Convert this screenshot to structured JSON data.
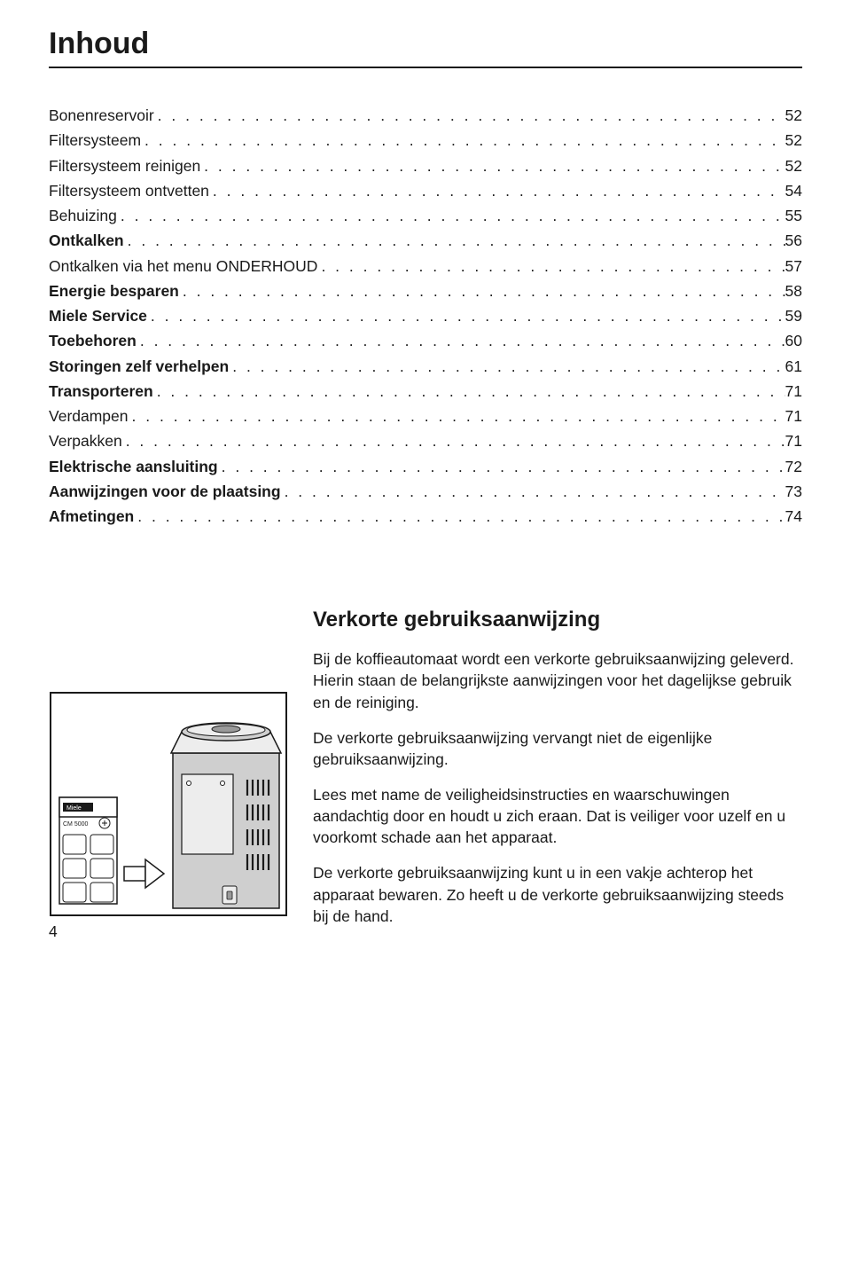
{
  "title": "Inhoud",
  "toc": [
    {
      "label": "Bonenreservoir",
      "page": "52",
      "bold": false
    },
    {
      "label": "Filtersysteem",
      "page": "52",
      "bold": false
    },
    {
      "label": "Filtersysteem reinigen",
      "page": "52",
      "bold": false
    },
    {
      "label": "Filtersysteem ontvetten",
      "page": "54",
      "bold": false
    },
    {
      "label": "Behuizing",
      "page": "55",
      "bold": false
    },
    {
      "label": "Ontkalken",
      "page": "56",
      "bold": true
    },
    {
      "label": "Ontkalken via het menu ONDERHOUD",
      "page": "57",
      "bold": false
    },
    {
      "label": "Energie besparen",
      "page": "58",
      "bold": true
    },
    {
      "label": "Miele Service",
      "page": "59",
      "bold": true
    },
    {
      "label": "Toebehoren",
      "page": "60",
      "bold": true
    },
    {
      "label": "Storingen zelf verhelpen",
      "page": "61",
      "bold": true
    },
    {
      "label": "Transporteren",
      "page": "71",
      "bold": true
    },
    {
      "label": "Verdampen",
      "page": "71",
      "bold": false
    },
    {
      "label": "Verpakken",
      "page": "71",
      "bold": false
    },
    {
      "label": "Elektrische aansluiting",
      "page": "72",
      "bold": true
    },
    {
      "label": "Aanwijzingen voor de plaatsing",
      "page": "73",
      "bold": true
    },
    {
      "label": "Afmetingen",
      "page": "74",
      "bold": true
    }
  ],
  "section": {
    "heading": "Verkorte gebruiksaanwijzing",
    "p1": "Bij de koffieautomaat wordt een verkorte gebruiksaanwijzing geleverd. Hierin staan de belangrijkste aanwijzingen voor het dagelijkse gebruik en de reiniging.",
    "p2": "De verkorte gebruiksaanwijzing vervangt niet de eigenlijke gebruiksaanwijzing.",
    "p3": "Lees met name de veiligheidsinstructies en waarschuwingen aandachtig door en houdt u zich eraan. Dat is veiliger voor uzelf en u voorkomt schade aan het apparaat.",
    "p4": "De verkorte gebruiksaanwijzing kunt u in een vakje achterop het apparaat bewaren. Zo heeft u de verkorte gebruiksaanwijzing steeds bij de hand."
  },
  "pageNumber": "4",
  "illustration": {
    "brand": "Miele",
    "model": "CM 5000",
    "stroke": "#1a1a1a",
    "fill_light": "#ededed",
    "fill_mid": "#cfcfcf",
    "fill_dark": "#9a9a9a",
    "bg": "#ffffff"
  }
}
